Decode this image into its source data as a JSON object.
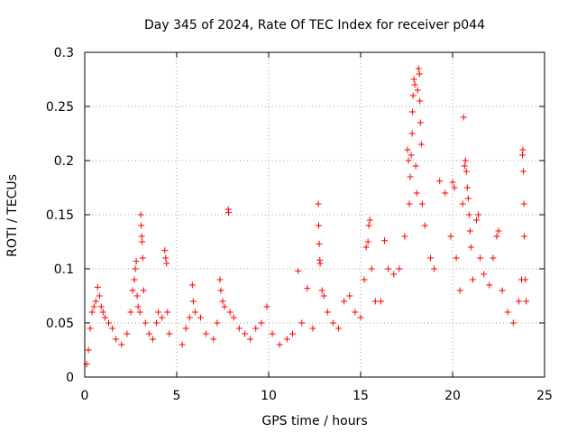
{
  "chart_data": {
    "type": "scatter",
    "title": "Day 345 of 2024, Rate Of TEC Index for receiver p044",
    "xlabel": "GPS time / hours",
    "ylabel": "ROTI / TECUs",
    "xlim": [
      0,
      25
    ],
    "ylim": [
      0,
      0.3
    ],
    "x_ticks": [
      0,
      5,
      10,
      15,
      20,
      25
    ],
    "x_tick_labels": [
      "0",
      "5",
      "10",
      "15",
      "20",
      "25"
    ],
    "y_ticks": [
      0,
      0.05,
      0.1,
      0.15,
      0.2,
      0.25,
      0.3
    ],
    "y_tick_labels": [
      "0",
      "0.05",
      "0.1",
      "0.15",
      "0.2",
      "0.25",
      "0.3"
    ],
    "grid": true,
    "marker": "+",
    "color": "#ff0000",
    "series": [
      {
        "name": "p044",
        "points": [
          [
            0.1,
            0.012
          ],
          [
            0.2,
            0.025
          ],
          [
            0.3,
            0.045
          ],
          [
            0.4,
            0.06
          ],
          [
            0.5,
            0.065
          ],
          [
            0.6,
            0.07
          ],
          [
            0.7,
            0.083
          ],
          [
            0.8,
            0.075
          ],
          [
            0.9,
            0.065
          ],
          [
            1.0,
            0.06
          ],
          [
            1.1,
            0.055
          ],
          [
            1.3,
            0.05
          ],
          [
            1.5,
            0.045
          ],
          [
            1.7,
            0.035
          ],
          [
            2.0,
            0.03
          ],
          [
            2.3,
            0.04
          ],
          [
            2.5,
            0.06
          ],
          [
            2.6,
            0.08
          ],
          [
            2.7,
            0.09
          ],
          [
            2.75,
            0.1
          ],
          [
            2.8,
            0.107
          ],
          [
            2.85,
            0.075
          ],
          [
            2.9,
            0.065
          ],
          [
            3.0,
            0.06
          ],
          [
            3.05,
            0.15
          ],
          [
            3.07,
            0.14
          ],
          [
            3.1,
            0.13
          ],
          [
            3.12,
            0.125
          ],
          [
            3.15,
            0.11
          ],
          [
            3.2,
            0.08
          ],
          [
            3.3,
            0.05
          ],
          [
            3.5,
            0.04
          ],
          [
            3.7,
            0.035
          ],
          [
            3.9,
            0.05
          ],
          [
            4.0,
            0.06
          ],
          [
            4.2,
            0.055
          ],
          [
            4.35,
            0.117
          ],
          [
            4.4,
            0.11
          ],
          [
            4.45,
            0.105
          ],
          [
            4.5,
            0.06
          ],
          [
            4.6,
            0.04
          ],
          [
            5.3,
            0.03
          ],
          [
            5.5,
            0.045
          ],
          [
            5.7,
            0.055
          ],
          [
            5.85,
            0.085
          ],
          [
            5.9,
            0.07
          ],
          [
            6.0,
            0.06
          ],
          [
            6.3,
            0.055
          ],
          [
            6.6,
            0.04
          ],
          [
            7.0,
            0.035
          ],
          [
            7.2,
            0.05
          ],
          [
            7.35,
            0.09
          ],
          [
            7.4,
            0.08
          ],
          [
            7.5,
            0.07
          ],
          [
            7.6,
            0.065
          ],
          [
            7.8,
            0.155
          ],
          [
            7.82,
            0.152
          ],
          [
            7.9,
            0.06
          ],
          [
            8.1,
            0.055
          ],
          [
            8.4,
            0.045
          ],
          [
            8.7,
            0.04
          ],
          [
            9.0,
            0.035
          ],
          [
            9.3,
            0.045
          ],
          [
            9.6,
            0.05
          ],
          [
            9.9,
            0.065
          ],
          [
            10.2,
            0.04
          ],
          [
            10.6,
            0.03
          ],
          [
            11.0,
            0.035
          ],
          [
            11.3,
            0.04
          ],
          [
            11.6,
            0.098
          ],
          [
            11.8,
            0.05
          ],
          [
            12.1,
            0.082
          ],
          [
            12.4,
            0.045
          ],
          [
            12.7,
            0.16
          ],
          [
            12.72,
            0.14
          ],
          [
            12.75,
            0.123
          ],
          [
            12.78,
            0.108
          ],
          [
            12.8,
            0.105
          ],
          [
            12.9,
            0.08
          ],
          [
            13.0,
            0.075
          ],
          [
            13.2,
            0.06
          ],
          [
            13.5,
            0.05
          ],
          [
            13.8,
            0.045
          ],
          [
            14.1,
            0.07
          ],
          [
            14.4,
            0.075
          ],
          [
            14.7,
            0.06
          ],
          [
            15.0,
            0.055
          ],
          [
            15.2,
            0.09
          ],
          [
            15.3,
            0.12
          ],
          [
            15.4,
            0.125
          ],
          [
            15.45,
            0.14
          ],
          [
            15.5,
            0.145
          ],
          [
            15.6,
            0.1
          ],
          [
            15.8,
            0.07
          ],
          [
            16.1,
            0.07
          ],
          [
            16.3,
            0.126
          ],
          [
            16.5,
            0.1
          ],
          [
            16.8,
            0.095
          ],
          [
            17.1,
            0.1
          ],
          [
            17.4,
            0.13
          ],
          [
            17.55,
            0.21
          ],
          [
            17.6,
            0.2
          ],
          [
            17.65,
            0.16
          ],
          [
            17.7,
            0.185
          ],
          [
            17.75,
            0.205
          ],
          [
            17.8,
            0.225
          ],
          [
            17.82,
            0.245
          ],
          [
            17.85,
            0.26
          ],
          [
            17.9,
            0.275
          ],
          [
            17.95,
            0.27
          ],
          [
            18.0,
            0.195
          ],
          [
            18.05,
            0.17
          ],
          [
            18.1,
            0.265
          ],
          [
            18.15,
            0.285
          ],
          [
            18.2,
            0.28
          ],
          [
            18.22,
            0.255
          ],
          [
            18.25,
            0.235
          ],
          [
            18.3,
            0.215
          ],
          [
            18.35,
            0.16
          ],
          [
            18.5,
            0.14
          ],
          [
            18.8,
            0.11
          ],
          [
            19.0,
            0.1
          ],
          [
            19.3,
            0.181
          ],
          [
            19.6,
            0.17
          ],
          [
            19.9,
            0.13
          ],
          [
            20.0,
            0.18
          ],
          [
            20.1,
            0.175
          ],
          [
            20.2,
            0.11
          ],
          [
            20.4,
            0.08
          ],
          [
            20.55,
            0.16
          ],
          [
            20.6,
            0.24
          ],
          [
            20.65,
            0.195
          ],
          [
            20.7,
            0.2
          ],
          [
            20.75,
            0.19
          ],
          [
            20.8,
            0.175
          ],
          [
            20.85,
            0.165
          ],
          [
            20.9,
            0.15
          ],
          [
            20.95,
            0.135
          ],
          [
            21.0,
            0.12
          ],
          [
            21.1,
            0.09
          ],
          [
            21.3,
            0.145
          ],
          [
            21.4,
            0.15
          ],
          [
            21.5,
            0.11
          ],
          [
            21.7,
            0.095
          ],
          [
            22.0,
            0.085
          ],
          [
            22.2,
            0.11
          ],
          [
            22.4,
            0.13
          ],
          [
            22.5,
            0.135
          ],
          [
            22.7,
            0.08
          ],
          [
            23.0,
            0.06
          ],
          [
            23.3,
            0.05
          ],
          [
            23.6,
            0.07
          ],
          [
            23.75,
            0.09
          ],
          [
            23.8,
            0.205
          ],
          [
            23.82,
            0.21
          ],
          [
            23.85,
            0.19
          ],
          [
            23.88,
            0.16
          ],
          [
            23.9,
            0.13
          ],
          [
            23.95,
            0.09
          ],
          [
            24.0,
            0.07
          ]
        ]
      }
    ]
  }
}
